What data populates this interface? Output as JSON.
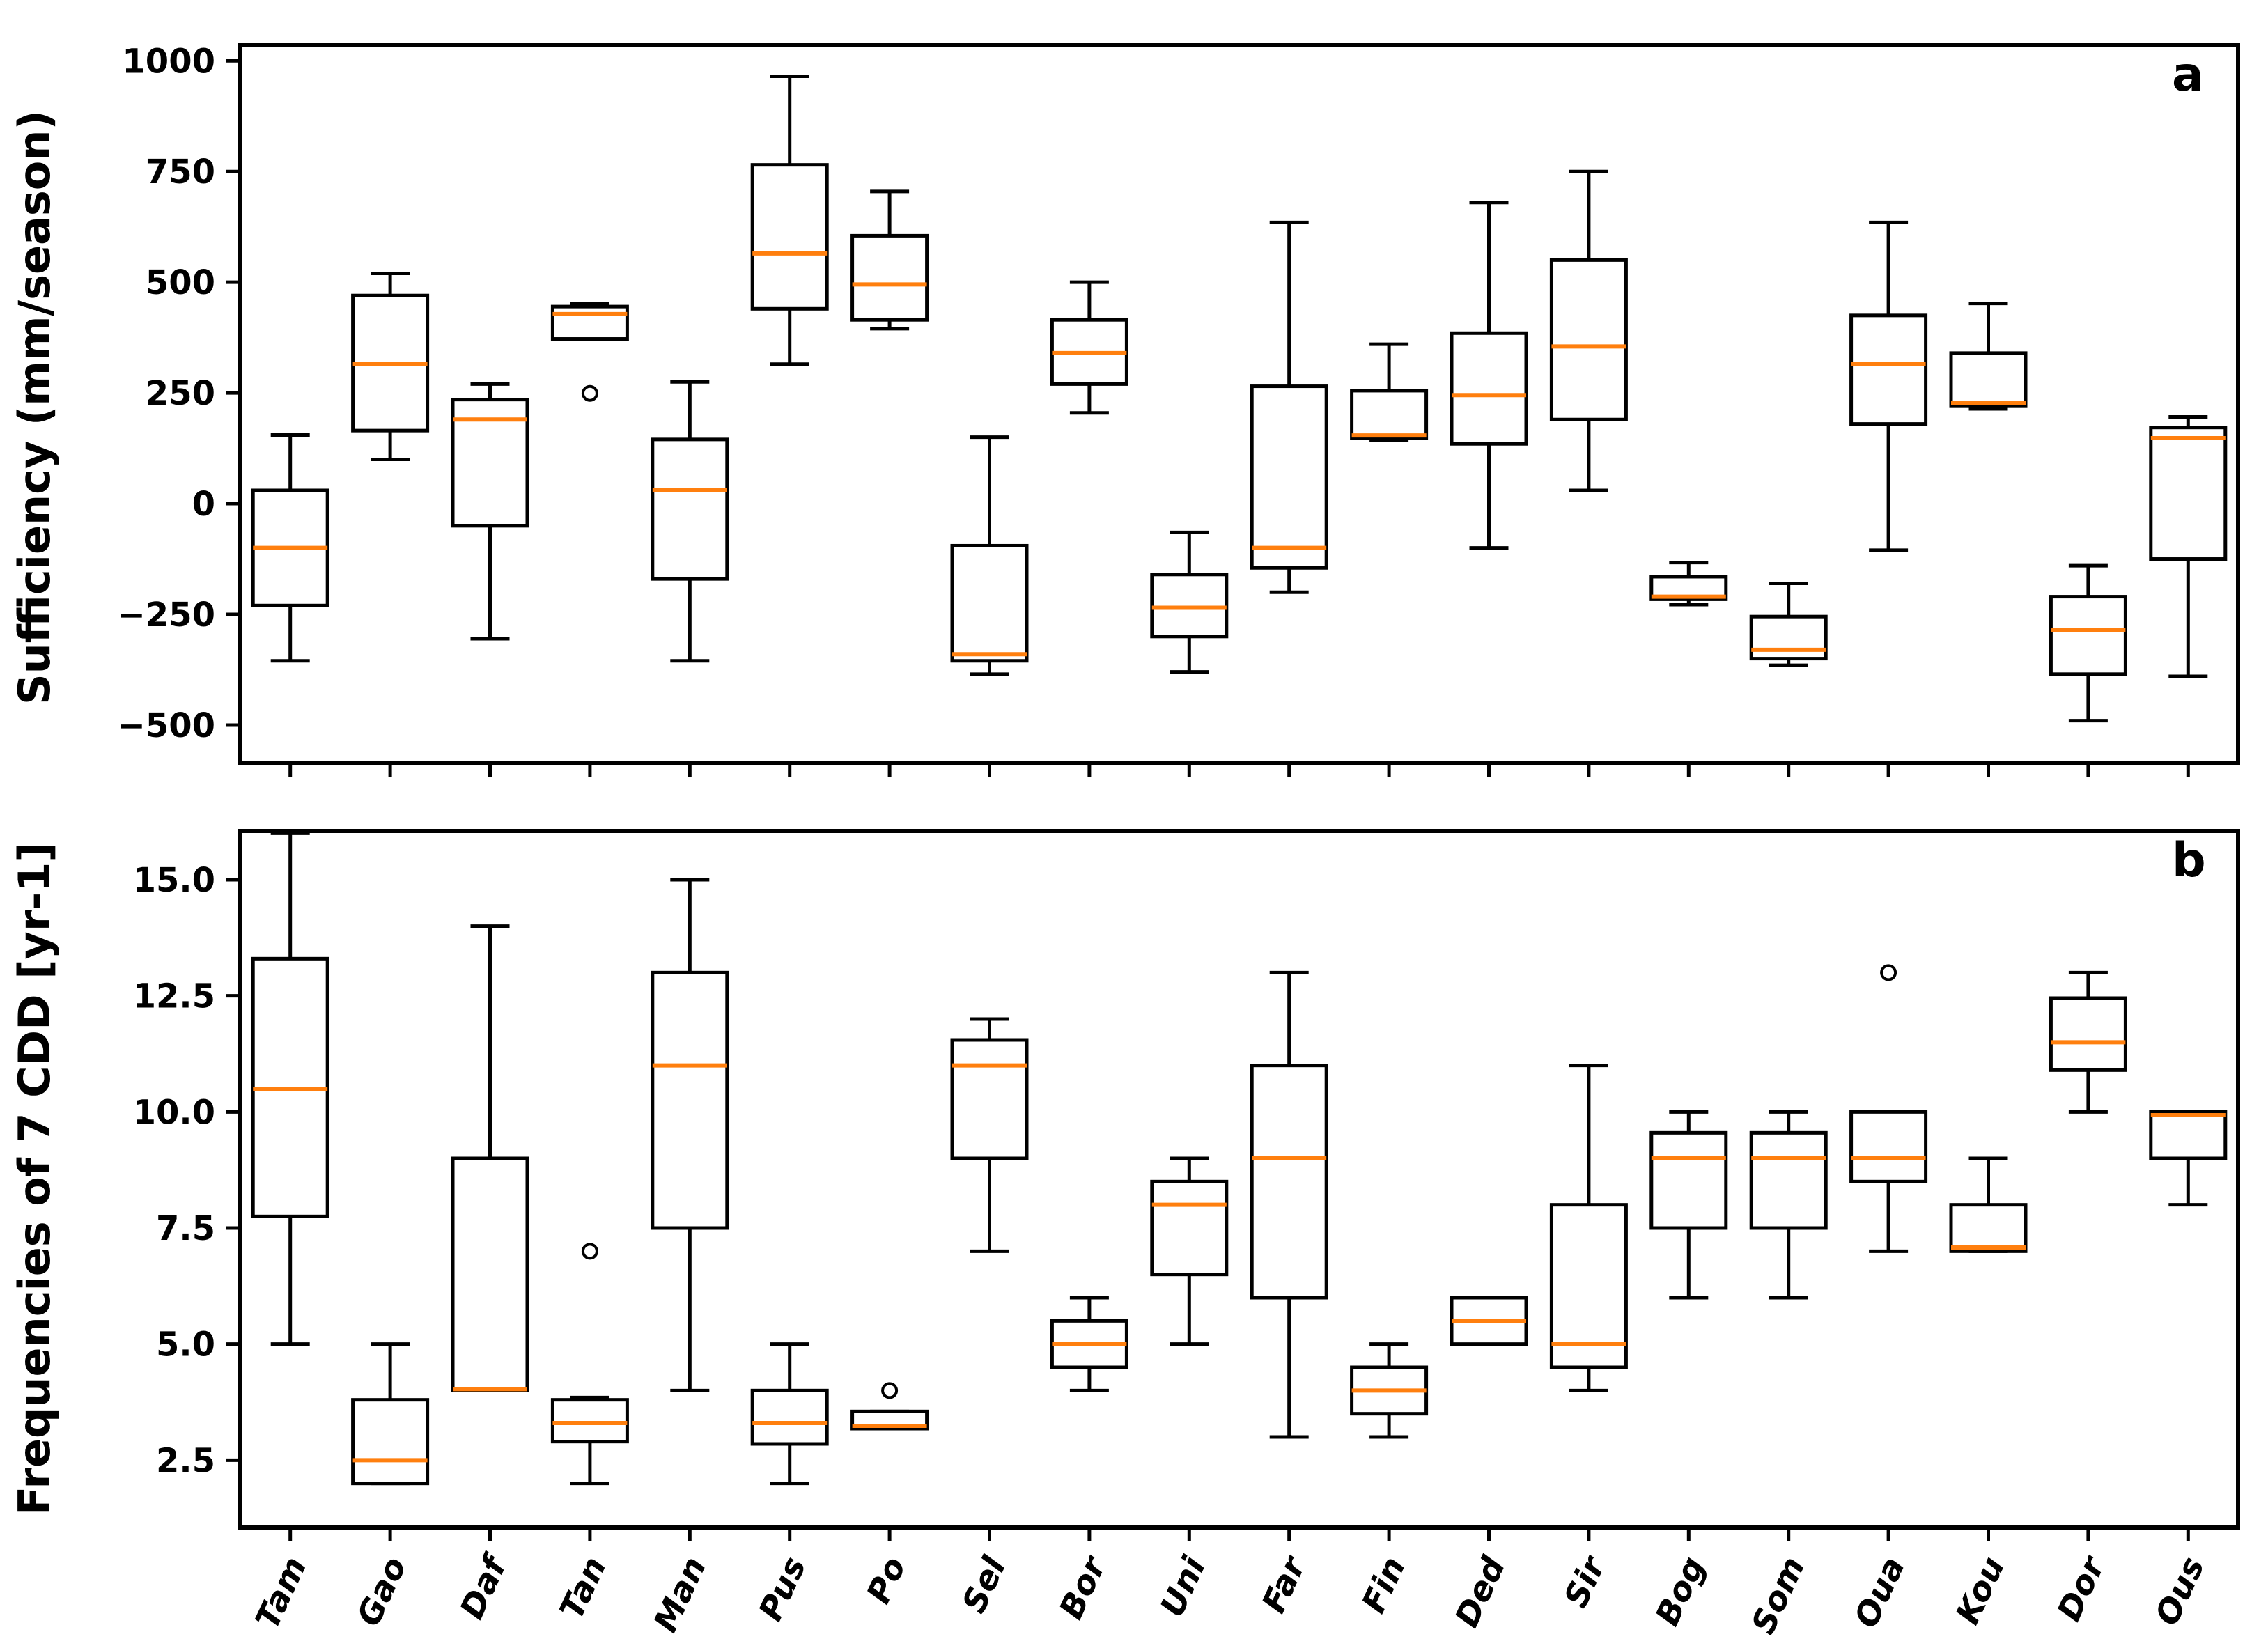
{
  "figure": {
    "background": "#ffffff",
    "line_color": "#000000",
    "median_color": "#ff7f0e"
  },
  "chart_data": [
    {
      "type": "boxplot",
      "panel_label": "a",
      "ylabel": "Sufficiency (mm/season)",
      "ylim": [
        -585,
        1035
      ],
      "grid": false,
      "legend": "none",
      "yticks": {
        "values": [
          1000,
          750,
          500,
          250,
          0,
          -250,
          -500
        ],
        "labels": [
          "1000",
          "750",
          "500",
          "250",
          "0",
          "−250",
          "−500"
        ]
      },
      "xticklabels_visible": false,
      "categories": [
        "Tam",
        "Gao",
        "Daf",
        "Tan",
        "Man",
        "Pus",
        "Po",
        "Sel",
        "Bor",
        "Uni",
        "Far",
        "Fin",
        "Ded",
        "Sir",
        "Bog",
        "Som",
        "Oua",
        "Kou",
        "Dor",
        "Ous"
      ],
      "boxes": [
        {
          "name": "Tam",
          "whislo": -355,
          "q1": -230,
          "med": -100,
          "q3": 30,
          "whishi": 155,
          "fliers": []
        },
        {
          "name": "Gao",
          "whislo": 100,
          "q1": 165,
          "med": 315,
          "q3": 470,
          "whishi": 520,
          "fliers": []
        },
        {
          "name": "Daf",
          "whislo": -305,
          "q1": -50,
          "med": 190,
          "q3": 235,
          "whishi": 270,
          "fliers": []
        },
        {
          "name": "Tan",
          "whislo": 372,
          "q1": 372,
          "med": 428,
          "q3": 445,
          "whishi": 452,
          "fliers": [
            249
          ]
        },
        {
          "name": "Man",
          "whislo": -355,
          "q1": -170,
          "med": 30,
          "q3": 145,
          "whishi": 275,
          "fliers": []
        },
        {
          "name": "Pus",
          "whislo": 315,
          "q1": 440,
          "med": 565,
          "q3": 765,
          "whishi": 965,
          "fliers": []
        },
        {
          "name": "Po",
          "whislo": 395,
          "q1": 415,
          "med": 495,
          "q3": 605,
          "whishi": 705,
          "fliers": []
        },
        {
          "name": "Sel",
          "whislo": -385,
          "q1": -355,
          "med": -340,
          "q3": -95,
          "whishi": 150,
          "fliers": []
        },
        {
          "name": "Bor",
          "whislo": 205,
          "q1": 270,
          "med": 340,
          "q3": 415,
          "whishi": 500,
          "fliers": []
        },
        {
          "name": "Uni",
          "whislo": -380,
          "q1": -300,
          "med": -235,
          "q3": -160,
          "whishi": -65,
          "fliers": []
        },
        {
          "name": "Far",
          "whislo": -200,
          "q1": -145,
          "med": -100,
          "q3": 265,
          "whishi": 635,
          "fliers": []
        },
        {
          "name": "Fin",
          "whislo": 143,
          "q1": 148,
          "med": 154,
          "q3": 255,
          "whishi": 360,
          "fliers": []
        },
        {
          "name": "Ded",
          "whislo": -100,
          "q1": 135,
          "med": 245,
          "q3": 385,
          "whishi": 680,
          "fliers": []
        },
        {
          "name": "Sir",
          "whislo": 30,
          "q1": 190,
          "med": 355,
          "q3": 550,
          "whishi": 750,
          "fliers": []
        },
        {
          "name": "Bog",
          "whislo": -228,
          "q1": -216,
          "med": -210,
          "q3": -165,
          "whishi": -133,
          "fliers": []
        },
        {
          "name": "Som",
          "whislo": -365,
          "q1": -350,
          "med": -330,
          "q3": -255,
          "whishi": -180,
          "fliers": []
        },
        {
          "name": "Oua",
          "whislo": -105,
          "q1": 180,
          "med": 315,
          "q3": 425,
          "whishi": 635,
          "fliers": []
        },
        {
          "name": "Kou",
          "whislo": 214,
          "q1": 220,
          "med": 228,
          "q3": 340,
          "whishi": 452,
          "fliers": []
        },
        {
          "name": "Dor",
          "whislo": -490,
          "q1": -385,
          "med": -285,
          "q3": -210,
          "whishi": -140,
          "fliers": []
        },
        {
          "name": "Ous",
          "whislo": -390,
          "q1": -125,
          "med": 148,
          "q3": 172,
          "whishi": 196,
          "fliers": []
        }
      ]
    },
    {
      "type": "boxplot",
      "panel_label": "b",
      "ylabel": "Frequencies of 7 CDD [yr-1]",
      "ylim": [
        1.05,
        16.05
      ],
      "grid": false,
      "legend": "none",
      "yticks": {
        "values": [
          15.0,
          12.5,
          10.0,
          7.5,
          5.0,
          2.5
        ],
        "labels": [
          "15.0",
          "12.5",
          "10.0",
          "7.5",
          "5.0",
          "2.5"
        ]
      },
      "xticklabels_visible": true,
      "categories": [
        "Tam",
        "Gao",
        "Daf",
        "Tan",
        "Man",
        "Pus",
        "Po",
        "Sel",
        "Bor",
        "Uni",
        "Far",
        "Fin",
        "Ded",
        "Sir",
        "Bog",
        "Som",
        "Oua",
        "Kou",
        "Dor",
        "Ous"
      ],
      "boxes": [
        {
          "name": "Tam",
          "whislo": 5.0,
          "q1": 7.75,
          "med": 10.5,
          "q3": 13.3,
          "whishi": 16.0,
          "fliers": []
        },
        {
          "name": "Gao",
          "whislo": 2.0,
          "q1": 2.0,
          "med": 2.5,
          "q3": 3.8,
          "whishi": 5.0,
          "fliers": []
        },
        {
          "name": "Daf",
          "whislo": 4.0,
          "q1": 4.0,
          "med": 4.03,
          "q3": 9.0,
          "whishi": 14.0,
          "fliers": []
        },
        {
          "name": "Tan",
          "whislo": 2.0,
          "q1": 2.9,
          "med": 3.3,
          "q3": 3.8,
          "whishi": 3.85,
          "fliers": [
            7.0
          ]
        },
        {
          "name": "Man",
          "whislo": 4.0,
          "q1": 7.5,
          "med": 11.0,
          "q3": 13.0,
          "whishi": 15.0,
          "fliers": []
        },
        {
          "name": "Pus",
          "whislo": 2.0,
          "q1": 2.85,
          "med": 3.3,
          "q3": 4.0,
          "whishi": 5.0,
          "fliers": []
        },
        {
          "name": "Po",
          "whislo": 3.18,
          "q1": 3.18,
          "med": 3.24,
          "q3": 3.55,
          "whishi": 3.55,
          "fliers": [
            4.0
          ]
        },
        {
          "name": "Sel",
          "whislo": 7.0,
          "q1": 9.0,
          "med": 11.0,
          "q3": 11.55,
          "whishi": 12.0,
          "fliers": []
        },
        {
          "name": "Bor",
          "whislo": 4.0,
          "q1": 4.5,
          "med": 5.0,
          "q3": 5.5,
          "whishi": 6.0,
          "fliers": []
        },
        {
          "name": "Uni",
          "whislo": 5.0,
          "q1": 6.5,
          "med": 8.0,
          "q3": 8.5,
          "whishi": 9.0,
          "fliers": []
        },
        {
          "name": "Far",
          "whislo": 3.0,
          "q1": 6.0,
          "med": 9.0,
          "q3": 11.0,
          "whishi": 13.0,
          "fliers": []
        },
        {
          "name": "Fin",
          "whislo": 3.0,
          "q1": 3.5,
          "med": 4.0,
          "q3": 4.5,
          "whishi": 5.0,
          "fliers": []
        },
        {
          "name": "Ded",
          "whislo": 5.0,
          "q1": 5.0,
          "med": 5.5,
          "q3": 6.0,
          "whishi": 6.0,
          "fliers": []
        },
        {
          "name": "Sir",
          "whislo": 4.0,
          "q1": 4.5,
          "med": 5.0,
          "q3": 8.0,
          "whishi": 11.0,
          "fliers": []
        },
        {
          "name": "Bog",
          "whislo": 6.0,
          "q1": 7.5,
          "med": 9.0,
          "q3": 9.55,
          "whishi": 10.0,
          "fliers": []
        },
        {
          "name": "Som",
          "whislo": 6.0,
          "q1": 7.5,
          "med": 9.0,
          "q3": 9.55,
          "whishi": 10.0,
          "fliers": []
        },
        {
          "name": "Oua",
          "whislo": 7.0,
          "q1": 8.5,
          "med": 9.0,
          "q3": 10.0,
          "whishi": 10.0,
          "fliers": [
            13.0
          ]
        },
        {
          "name": "Kou",
          "whislo": 7.0,
          "q1": 7.0,
          "med": 7.08,
          "q3": 8.0,
          "whishi": 9.0,
          "fliers": []
        },
        {
          "name": "Dor",
          "whislo": 10.0,
          "q1": 10.9,
          "med": 11.5,
          "q3": 12.45,
          "whishi": 13.0,
          "fliers": []
        },
        {
          "name": "Ous",
          "whislo": 8.0,
          "q1": 9.0,
          "med": 9.93,
          "q3": 10.0,
          "whishi": 10.0,
          "fliers": []
        }
      ]
    }
  ]
}
